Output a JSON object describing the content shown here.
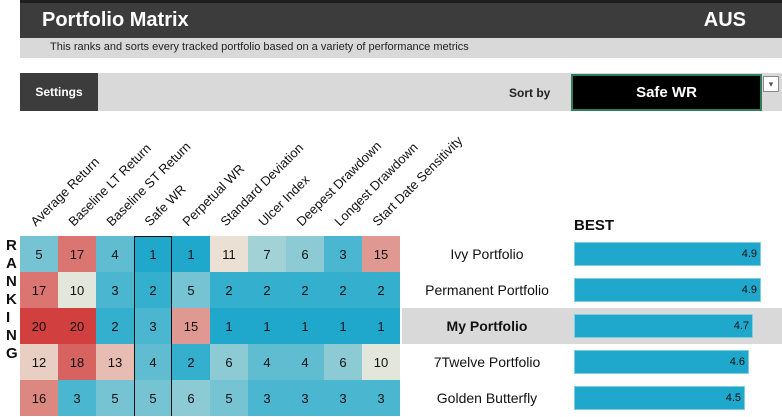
{
  "header": {
    "title": "Portfolio Matrix",
    "country": "AUS"
  },
  "subtitle": "This ranks and sorts every tracked portfolio based on a variety of performance metrics",
  "toolbar": {
    "settings_label": "Settings",
    "sort_by_label": "Sort by",
    "sort_value": "Safe WR",
    "dropdown_icon": "▾"
  },
  "columns": [
    "Average Return",
    "Baseline LT Return",
    "Baseline ST Return",
    "Safe WR",
    "Perpetual WR",
    "Standard Deviation",
    "Ulcer Index",
    "Deepest Drawdown",
    "Longest Drawdown",
    "Start Date Sensitivity"
  ],
  "ranking_label": [
    "R",
    "A",
    "N",
    "K",
    "I",
    "N",
    "G"
  ],
  "best_label": "BEST",
  "rows": [
    {
      "name": "Ivy Portfolio",
      "values": [
        5,
        17,
        4,
        1,
        1,
        11,
        7,
        6,
        3,
        15
      ],
      "score": "4.9",
      "highlight": false
    },
    {
      "name": "Permanent Portfolio",
      "values": [
        17,
        10,
        3,
        2,
        5,
        2,
        2,
        2,
        2,
        2
      ],
      "score": "4.9",
      "highlight": false
    },
    {
      "name": "My Portfolio",
      "values": [
        20,
        20,
        2,
        3,
        15,
        1,
        1,
        1,
        1,
        1
      ],
      "score": "4.7",
      "highlight": true
    },
    {
      "name": "7Twelve Portfolio",
      "values": [
        12,
        18,
        13,
        4,
        2,
        6,
        4,
        4,
        6,
        10
      ],
      "score": "4.6",
      "highlight": false
    },
    {
      "name": "Golden Butterfly",
      "values": [
        16,
        3,
        5,
        5,
        6,
        5,
        3,
        3,
        3,
        3
      ],
      "score": "4.5",
      "highlight": false
    }
  ],
  "colors": {
    "best": "#1fa8cc",
    "mid": "#eee9dc",
    "worst": "#d13f3f",
    "bar": "#1fa8cc",
    "header_bg": "#3c3c3c"
  }
}
